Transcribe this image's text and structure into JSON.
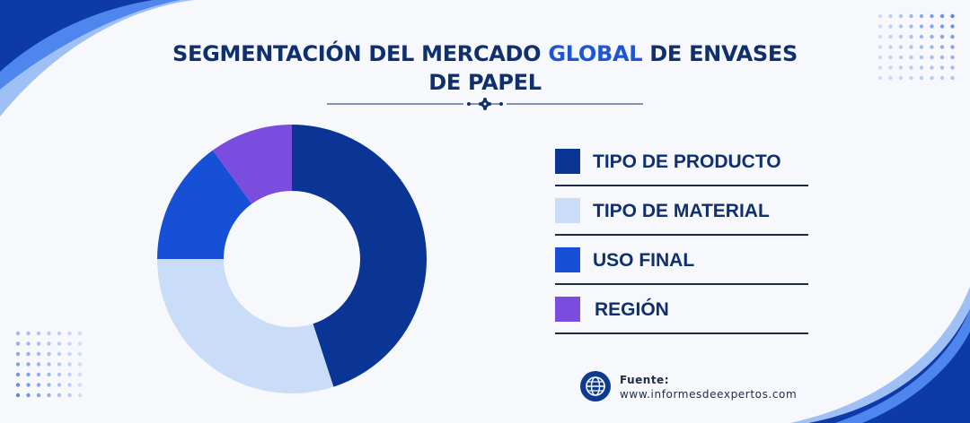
{
  "title": {
    "part1": "SEGMENTACIÓN DEL MERCADO ",
    "highlight": "GLOBAL",
    "part2": " DE ENVASES",
    "line2": "DE PAPEL"
  },
  "colors": {
    "navy": "#0a3594",
    "light_blue": "#c9ddf8",
    "bright_blue": "#1650d6",
    "purple": "#7a4ddf",
    "title": "#0f2f6e",
    "highlight": "#1e55d4"
  },
  "chart_data": {
    "type": "pie",
    "donut": true,
    "categories": [
      "TIPO DE PRODUCTO",
      "TIPO DE MATERIAL",
      "USO FINAL",
      "REGIÓN"
    ],
    "values": [
      45,
      30,
      15,
      10
    ],
    "colors": [
      "#0a3594",
      "#c9ddf8",
      "#1650d6",
      "#7a4ddf"
    ],
    "legend_position": "right"
  },
  "legend": [
    {
      "label": "TIPO DE PRODUCTO",
      "color": "#0a3594"
    },
    {
      "label": "TIPO DE MATERIAL",
      "color": "#c9ddf8"
    },
    {
      "label": "USO FINAL",
      "color": "#1650d6"
    },
    {
      "label": "REGIÓN",
      "color": "#7a4ddf"
    }
  ],
  "source": {
    "label": "Fuente:",
    "url": "www.informesdeexpertos.com",
    "icon": "globe-icon"
  }
}
